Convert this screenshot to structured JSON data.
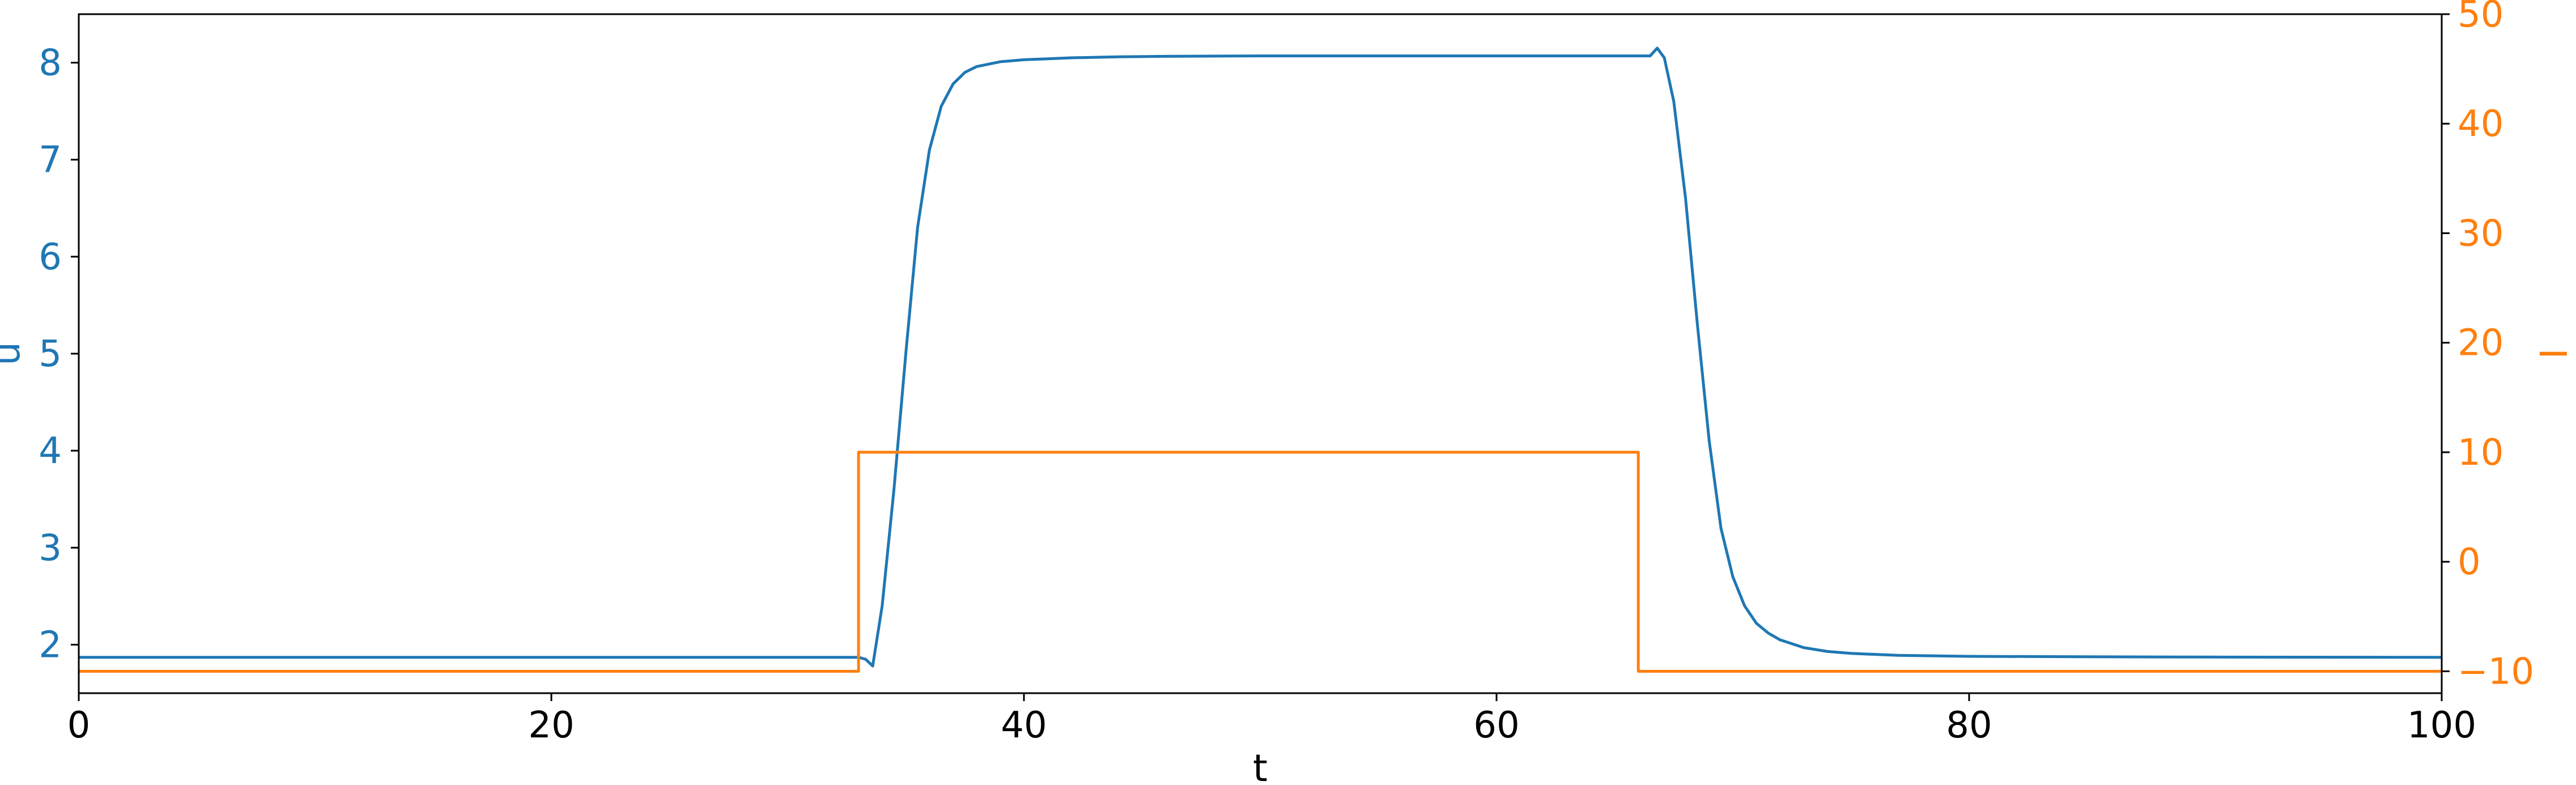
{
  "chart_data": {
    "type": "line",
    "xlabel": "t",
    "ylabel_left": "u",
    "ylabel_right": "I",
    "xlim": [
      0,
      100
    ],
    "ylim_left": [
      1.5,
      8.5
    ],
    "ylim_right": [
      -12,
      50
    ],
    "x_ticks": [
      0,
      20,
      40,
      60,
      80,
      100
    ],
    "y_left_ticks": [
      2,
      3,
      4,
      5,
      6,
      7,
      8
    ],
    "y_right_ticks": [
      -10,
      0,
      10,
      20,
      30,
      40,
      50
    ],
    "y_right_tick_labels": [
      "−10",
      "0",
      "10",
      "20",
      "30",
      "40",
      "50"
    ],
    "grid": false,
    "series": [
      {
        "axis": "left",
        "color": "#1f77b4",
        "x": [
          0,
          33.0,
          33.3,
          33.6,
          34.0,
          34.5,
          35.0,
          35.5,
          36.0,
          36.5,
          37.0,
          37.5,
          38.0,
          39.0,
          40.0,
          41.0,
          42.0,
          44.0,
          46.0,
          50.0,
          55.0,
          60.0,
          66.5,
          66.8,
          67.1,
          67.5,
          68.0,
          68.5,
          69.0,
          69.5,
          70.0,
          70.5,
          71.0,
          71.5,
          72.0,
          73.0,
          74.0,
          75.0,
          77.0,
          80.0,
          85.0,
          90.0,
          100.0
        ],
        "y": [
          1.87,
          1.87,
          1.85,
          1.78,
          2.4,
          3.6,
          5.0,
          6.3,
          7.1,
          7.55,
          7.78,
          7.9,
          7.96,
          8.01,
          8.03,
          8.04,
          8.05,
          8.06,
          8.065,
          8.07,
          8.07,
          8.07,
          8.07,
          8.15,
          8.05,
          7.6,
          6.6,
          5.3,
          4.1,
          3.2,
          2.7,
          2.4,
          2.22,
          2.12,
          2.05,
          1.97,
          1.93,
          1.91,
          1.89,
          1.88,
          1.875,
          1.872,
          1.87
        ]
      },
      {
        "axis": "right",
        "color": "#ff7f0e",
        "x": [
          0,
          33.0,
          33.0,
          66.0,
          66.0,
          100.0
        ],
        "y": [
          -10,
          -10,
          10,
          10,
          -10,
          -10
        ]
      }
    ]
  }
}
